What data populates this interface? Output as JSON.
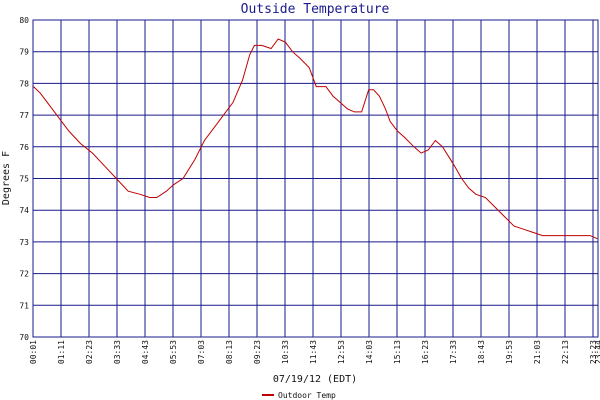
{
  "chart_data": {
    "type": "line",
    "title": "Outside Temperature",
    "xlabel": "07/19/12 (EDT)",
    "ylabel": "Degrees F",
    "ylim": [
      70,
      80
    ],
    "yticks": [
      "70",
      "71",
      "72",
      "73",
      "74",
      "75",
      "76",
      "77",
      "78",
      "79",
      "80"
    ],
    "xticks": [
      "00:01",
      "01:11",
      "02:23",
      "03:33",
      "04:43",
      "05:53",
      "07:03",
      "08:13",
      "09:23",
      "10:33",
      "11:43",
      "12:53",
      "14:03",
      "15:13",
      "16:23",
      "17:33",
      "18:43",
      "19:53",
      "21:03",
      "22:13",
      "23:23",
      "23:44"
    ],
    "grid": true,
    "legend_position": "bottom-center",
    "colors": {
      "series": "#c00000",
      "grid": "#1a1a8c",
      "title": "#1a1a8c"
    },
    "series": [
      {
        "name": "Outdoor Temp",
        "x_hours": [
          0.02,
          0.3,
          0.6,
          1.0,
          1.5,
          2.0,
          2.5,
          3.0,
          3.5,
          4.0,
          4.5,
          4.9,
          5.2,
          5.6,
          5.9,
          6.3,
          6.8,
          7.2,
          7.6,
          8.0,
          8.4,
          8.8,
          9.1,
          9.3,
          9.6,
          10.0,
          10.3,
          10.6,
          10.9,
          11.2,
          11.6,
          11.9,
          12.3,
          12.6,
          12.9,
          13.2,
          13.5,
          13.8,
          14.1,
          14.3,
          14.55,
          14.8,
          15.0,
          15.3,
          15.6,
          16.0,
          16.3,
          16.6,
          16.9,
          17.2,
          17.45,
          17.7,
          18.0,
          18.3,
          18.6,
          19.0,
          19.4,
          19.8,
          20.2,
          20.6,
          21.0,
          21.4,
          21.8,
          22.2,
          22.6,
          23.0,
          23.4,
          23.7
        ],
        "values": [
          77.9,
          77.7,
          77.4,
          77.0,
          76.5,
          76.1,
          75.8,
          75.4,
          75.0,
          74.6,
          74.5,
          74.4,
          74.4,
          74.6,
          74.8,
          75.0,
          75.6,
          76.2,
          76.6,
          77.0,
          77.4,
          78.1,
          78.9,
          79.2,
          79.2,
          79.1,
          79.4,
          79.3,
          79.0,
          78.8,
          78.5,
          77.9,
          77.9,
          77.6,
          77.4,
          77.2,
          77.1,
          77.1,
          77.8,
          77.8,
          77.6,
          77.2,
          76.8,
          76.5,
          76.3,
          76.0,
          75.8,
          75.9,
          76.2,
          76.0,
          75.7,
          75.4,
          75.0,
          74.7,
          74.5,
          74.4,
          74.1,
          73.8,
          73.5,
          73.4,
          73.3,
          73.2,
          73.2,
          73.2,
          73.2,
          73.2,
          73.2,
          73.1
        ]
      }
    ]
  }
}
